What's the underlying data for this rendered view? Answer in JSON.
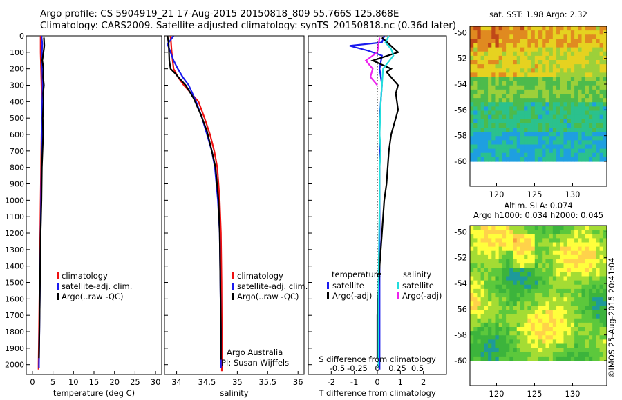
{
  "header": {
    "line1": "Argo profile: CS 5904919_21 17-Aug-2015 20150818_809 55.766S 125.868E",
    "line2": "Climatology: CARS2009. Satellite-adjusted climatology: synTS_20150818.nc (0.36d later)"
  },
  "stamp": "©IMOS 25-Aug-2015 20:41:04",
  "colors": {
    "climatology": "#ee1111",
    "satellite": "#1a1aee",
    "argo": "#000000",
    "salinity_satellite": "#22dddd",
    "salinity_argo": "#ee22ee"
  },
  "chart_data": [
    {
      "type": "line",
      "id": "temperature",
      "xlabel": "temperature (deg C)",
      "ylabel": "",
      "xlim": [
        -1.5,
        31.5
      ],
      "ylim": [
        2060,
        0
      ],
      "xticks": [
        0,
        5,
        10,
        15,
        20,
        25,
        30
      ],
      "xticklabels": [
        "0",
        "5",
        "10",
        "15",
        "20",
        "25",
        "30"
      ],
      "yticks": [
        0,
        100,
        200,
        300,
        400,
        500,
        600,
        700,
        800,
        900,
        1000,
        1100,
        1200,
        1300,
        1400,
        1500,
        1600,
        1700,
        1800,
        1900,
        2000
      ],
      "yticklabels": [
        "0",
        "100",
        "200",
        "300",
        "400",
        "500",
        "600",
        "700",
        "800",
        "900",
        "1000",
        "1100",
        "1200",
        "1300",
        "1400",
        "1500",
        "1600",
        "1700",
        "1800",
        "1900",
        "2000"
      ],
      "legend": [
        "climatology",
        "satellite-adj. clim.",
        "Argo(..raw -QC)"
      ],
      "series": [
        {
          "name": "climatology",
          "color": "#ee1111",
          "x": [
            2.0,
            2.0,
            2.1,
            2.2,
            2.3,
            2.3,
            2.2,
            2.1,
            2.0,
            1.9,
            1.8,
            1.7,
            1.6,
            1.5,
            1.5
          ],
          "y": [
            0,
            100,
            200,
            300,
            400,
            500,
            600,
            800,
            1000,
            1200,
            1400,
            1600,
            1800,
            2000,
            2030
          ]
        },
        {
          "name": "satellite-adj. clim.",
          "color": "#1a1aee",
          "x": [
            2.2,
            2.4,
            2.3,
            2.4,
            2.5,
            2.4,
            2.3,
            2.2,
            2.1,
            2.0,
            1.9,
            1.8,
            1.7,
            1.6,
            1.6
          ],
          "y": [
            0,
            50,
            100,
            200,
            300,
            400,
            600,
            800,
            1000,
            1200,
            1400,
            1600,
            1800,
            2000,
            2020
          ]
        },
        {
          "name": "Argo(..raw -QC)",
          "color": "#000000",
          "x": [
            2.8,
            2.9,
            2.7,
            2.4,
            2.7,
            2.6,
            2.8,
            2.6,
            2.7,
            2.5,
            2.6,
            2.3,
            2.2,
            2.0,
            1.9,
            1.8,
            1.7,
            1.6
          ],
          "y": [
            10,
            60,
            100,
            150,
            200,
            250,
            300,
            350,
            400,
            500,
            600,
            800,
            1000,
            1200,
            1400,
            1600,
            1800,
            1960
          ]
        }
      ]
    },
    {
      "type": "line",
      "id": "salinity",
      "xlabel": "salinity",
      "ylabel": "",
      "xlim": [
        33.8,
        36.1
      ],
      "ylim": [
        2060,
        0
      ],
      "xticks": [
        34,
        34.5,
        35,
        35.5,
        36
      ],
      "xticklabels": [
        "34",
        "34.5",
        "35",
        "35.5",
        "36"
      ],
      "legend": [
        "climatology",
        "satellite-adj. clim.",
        "Argo(..raw -QC)"
      ],
      "annotations": [
        "Argo Australia",
        "PI: Susan Wijffels"
      ],
      "series": [
        {
          "name": "climatology",
          "color": "#ee1111",
          "x": [
            33.9,
            33.92,
            33.95,
            34.02,
            34.12,
            34.24,
            34.36,
            34.46,
            34.55,
            34.62,
            34.67,
            34.71,
            34.73,
            34.74,
            34.745,
            34.745
          ],
          "y": [
            0,
            100,
            200,
            250,
            300,
            350,
            400,
            500,
            600,
            700,
            800,
            1000,
            1200,
            1500,
            1800,
            2040
          ]
        },
        {
          "name": "satellite-adj. clim.",
          "color": "#1a1aee",
          "x": [
            33.95,
            33.85,
            33.9,
            33.95,
            34.02,
            34.1,
            34.2,
            34.32,
            34.42,
            34.5,
            34.58,
            34.63,
            34.68,
            34.71,
            34.72,
            34.73,
            34.73
          ],
          "y": [
            0,
            50,
            100,
            150,
            200,
            250,
            300,
            400,
            500,
            600,
            700,
            800,
            1000,
            1200,
            1500,
            1800,
            2020
          ]
        },
        {
          "name": "Argo(..raw -QC)",
          "color": "#000000",
          "x": [
            33.85,
            33.87,
            33.88,
            33.9,
            33.98,
            34.05,
            34.15,
            34.28,
            34.4,
            34.5,
            34.58,
            34.64,
            34.69,
            34.71,
            34.72,
            34.73,
            34.73
          ],
          "y": [
            0,
            50,
            150,
            200,
            230,
            260,
            300,
            380,
            480,
            580,
            700,
            800,
            1000,
            1200,
            1500,
            1800,
            1970
          ]
        }
      ]
    },
    {
      "type": "line",
      "id": "difference",
      "xlabel": "T difference from climatology",
      "xlabel_top": "S difference from climatology",
      "ylabel": "",
      "xlim": [
        -3,
        3
      ],
      "ylim": [
        2060,
        0
      ],
      "xticks": [
        -2,
        -1,
        0,
        1,
        2
      ],
      "xticklabels": [
        "-2",
        "-1",
        "0",
        "1",
        "2"
      ],
      "sticks": [
        -0.5,
        -0.25,
        0,
        0.25,
        0.5
      ],
      "sticklabels": [
        "-0.5",
        "-0.25",
        "0",
        "0.25",
        "0.5"
      ],
      "legend_groups": [
        {
          "title": "temperature",
          "entries": [
            "satellite",
            "Argo(-adj)"
          ]
        },
        {
          "title": "salinity",
          "entries": [
            "satellite",
            "Argo(-adj)"
          ]
        }
      ],
      "series": [
        {
          "name": "temperature satellite",
          "color": "#1a1aee",
          "x": [
            0.3,
            0.2,
            -1.2,
            -0.4,
            0.2,
            0.1,
            0.2,
            0.1,
            0.1,
            0.1,
            0.1,
            0.1,
            0.1,
            0.1
          ],
          "y": [
            0,
            40,
            60,
            90,
            120,
            200,
            300,
            500,
            800,
            1000,
            1300,
            1600,
            1900,
            2030
          ]
        },
        {
          "name": "temperature Argo(-adj)",
          "color": "#000000",
          "x": [
            0.2,
            0.9,
            -0.2,
            0.6,
            0.4,
            0.9,
            0.8,
            0.9,
            0.6,
            0.5,
            0.4,
            0.3,
            0.2,
            0.1,
            0.0,
            0.0
          ],
          "y": [
            10,
            100,
            150,
            200,
            220,
            300,
            350,
            450,
            600,
            700,
            900,
            1000,
            1200,
            1400,
            1700,
            1960
          ]
        },
        {
          "name": "salinity satellite",
          "color": "#22dddd",
          "x": [
            0.5,
            0.35,
            0.6,
            0.7,
            0.25,
            0.2,
            0.15,
            0.1,
            0.15,
            0.1,
            0.1,
            0.05,
            0.05
          ],
          "y": [
            0,
            40,
            80,
            120,
            200,
            300,
            400,
            600,
            700,
            800,
            1000,
            1500,
            2020
          ]
        },
        {
          "name": "salinity Argo(-adj)",
          "color": "#ee22ee",
          "x": [
            0.1,
            0.0,
            -0.5,
            -0.2,
            -0.3,
            0.0
          ],
          "y": [
            10,
            100,
            150,
            200,
            250,
            300
          ]
        }
      ]
    },
    {
      "type": "heatmap",
      "id": "sst_map",
      "title": "sat. SST: 1.98 Argo: 2.32",
      "xlim": [
        116.5,
        134.5
      ],
      "ylim": [
        -60,
        -49.5
      ],
      "xticks": [
        120,
        125,
        130
      ],
      "xticklabels": [
        "120",
        "125",
        "130"
      ],
      "yticks": [
        -50,
        -52,
        -54,
        -56,
        -58,
        -60
      ],
      "yticklabels": [
        "-50",
        "-52",
        "-54",
        "-56",
        "-58",
        "-60"
      ],
      "colors": [
        "#1c3fbf",
        "#1e9fe0",
        "#2bc18d",
        "#4cbb4c",
        "#9cd03a",
        "#e6d220",
        "#e08a20",
        "#c04818"
      ]
    },
    {
      "type": "heatmap",
      "id": "sla_map",
      "title": "Altim. SLA: 0.074",
      "subtitle": "Argo h1000: 0.034 h2000: 0.045",
      "xlim": [
        116.5,
        134.5
      ],
      "ylim": [
        -60,
        -49.5
      ],
      "xticks": [
        120,
        125,
        130
      ],
      "xticklabels": [
        "120",
        "125",
        "130"
      ],
      "yticks": [
        -50,
        -52,
        -54,
        -56,
        -58,
        -60
      ],
      "yticklabels": [
        "-50",
        "-52",
        "-54",
        "-56",
        "-58",
        "-60"
      ],
      "colors": [
        "#1e9a9a",
        "#3cb43c",
        "#5cc83c",
        "#a4dc34",
        "#ffff3c",
        "#ffd24a",
        "#f7a040"
      ]
    }
  ]
}
